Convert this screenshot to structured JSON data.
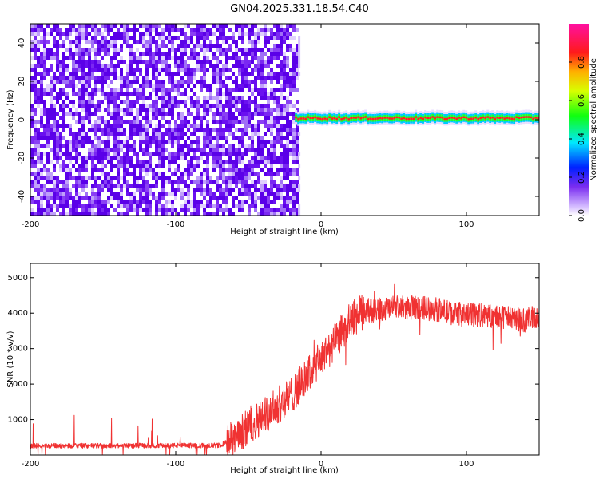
{
  "title": "GN04.2025.331.18.54.C40",
  "chart_data": [
    {
      "type": "heatmap",
      "xlabel": "Height of straight line (km)",
      "ylabel": "Frequency (Hz)",
      "xlim": [
        -200,
        150
      ],
      "ylim": [
        -50,
        50
      ],
      "x_ticks": [
        -200,
        -100,
        0,
        100
      ],
      "y_ticks": [
        -40,
        -20,
        0,
        20,
        40
      ],
      "noise_region_x": [
        -200,
        -17
      ],
      "signal_band": {
        "x": [
          -18,
          150
        ],
        "frequency": 1,
        "halfwidth": 3
      },
      "colorbar": {
        "label": "Normalized spectral amplitude",
        "range": [
          0,
          1
        ],
        "ticks": [
          0.0,
          0.2,
          0.4,
          0.6,
          0.8
        ],
        "tick_labels": [
          "0.0",
          "0.2",
          "0.4",
          "0.6",
          "0.8"
        ]
      }
    },
    {
      "type": "line",
      "xlabel": "Height of straight line (km)",
      "ylabel": "SNR (10 * v/v)",
      "xlim": [
        -200,
        150
      ],
      "ylim": [
        0,
        5400
      ],
      "x_ticks": [
        -200,
        -100,
        0,
        100
      ],
      "y_ticks": [
        1000,
        2000,
        3000,
        4000,
        5000
      ],
      "color": "#f03232",
      "trend": {
        "x": [
          -200,
          -70,
          -60,
          -50,
          -40,
          -30,
          -20,
          -10,
          0,
          10,
          20,
          30,
          40,
          50,
          60,
          70,
          80,
          90,
          100,
          110,
          120,
          130,
          140,
          150
        ],
        "y": [
          260,
          270,
          450,
          800,
          1100,
          1400,
          1700,
          2200,
          2700,
          3200,
          3800,
          4050,
          4100,
          4150,
          4150,
          4150,
          4100,
          4000,
          3950,
          3950,
          3900,
          3850,
          3800,
          3900
        ]
      }
    }
  ]
}
